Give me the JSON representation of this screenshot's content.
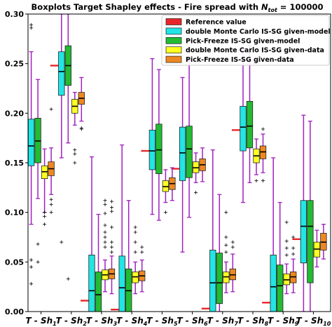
{
  "chart_data": {
    "type": "boxplot",
    "title": "Boxplots Target Shapley effects - Fire spread with ",
    "title_math": {
      "base": "N",
      "sub": "tot",
      "rest": " = 100000"
    },
    "categories": [
      {
        "base": "T - Sh",
        "sub": "1"
      },
      {
        "base": "T - Sh",
        "sub": "2"
      },
      {
        "base": "T - Sh",
        "sub": "3"
      },
      {
        "base": "T - Sh",
        "sub": "4"
      },
      {
        "base": "T - Sh",
        "sub": "5"
      },
      {
        "base": "T - Sh",
        "sub": "6"
      },
      {
        "base": "T - Sh",
        "sub": "7"
      },
      {
        "base": "T - Sh",
        "sub": "8"
      },
      {
        "base": "T - Sh",
        "sub": "9"
      },
      {
        "base": "T - Sh",
        "sub": "10"
      }
    ],
    "ylim": [
      0.0,
      0.3
    ],
    "yticks": [
      "0.00",
      "0.05",
      "0.10",
      "0.15",
      "0.20",
      "0.25",
      "0.30"
    ],
    "ytick_values": [
      0.0,
      0.05,
      0.1,
      0.15,
      0.2,
      0.25,
      0.3
    ],
    "legend_position": "top-right",
    "reference": {
      "name": "Reference value",
      "color": "#e8262a",
      "values": [
        0.152,
        0.248,
        0.011,
        0.002,
        0.162,
        0.144,
        0.003,
        0.183,
        0.009,
        0.073
      ]
    },
    "series": [
      {
        "name": "double Monte Carlo IS-SG given-model",
        "color": "#22e5e5",
        "whisker_color": "#a020c0",
        "boxes": [
          {
            "whislo": 0.088,
            "q1": 0.147,
            "med": 0.167,
            "q3": 0.194,
            "whishi": 0.262,
            "fliers": [
              0.286,
              0.289,
              0.045,
              0.052,
              0.028
            ]
          },
          {
            "whislo": 0.155,
            "q1": 0.218,
            "med": 0.242,
            "q3": 0.262,
            "whishi": 0.3,
            "fliers": [
              0.07
            ]
          },
          {
            "whislo": 0.0,
            "q1": 0.0,
            "med": 0.021,
            "q3": 0.057,
            "whishi": 0.156,
            "fliers": []
          },
          {
            "whislo": 0.0,
            "q1": 0.0,
            "med": 0.024,
            "q3": 0.056,
            "whishi": 0.168,
            "fliers": []
          },
          {
            "whislo": 0.098,
            "q1": 0.143,
            "med": 0.162,
            "q3": 0.183,
            "whishi": 0.255,
            "fliers": []
          },
          {
            "whislo": 0.06,
            "q1": 0.132,
            "med": 0.16,
            "q3": 0.186,
            "whishi": 0.236,
            "fliers": []
          },
          {
            "whislo": 0.0,
            "q1": 0.0,
            "med": 0.029,
            "q3": 0.062,
            "whishi": 0.163,
            "fliers": []
          },
          {
            "whislo": 0.11,
            "q1": 0.162,
            "med": 0.186,
            "q3": 0.207,
            "whishi": 0.265,
            "fliers": []
          },
          {
            "whislo": 0.0,
            "q1": 0.0,
            "med": 0.025,
            "q3": 0.057,
            "whishi": 0.155,
            "fliers": []
          },
          {
            "whislo": 0.0,
            "q1": 0.049,
            "med": 0.086,
            "q3": 0.112,
            "whishi": 0.198,
            "fliers": []
          }
        ]
      },
      {
        "name": "Pick-Freeze IS-SG given-model",
        "color": "#22bb33",
        "whisker_color": "#a020c0",
        "boxes": [
          {
            "whislo": 0.114,
            "q1": 0.15,
            "med": 0.172,
            "q3": 0.195,
            "whishi": 0.234,
            "fliers": [
              0.05,
              0.068
            ]
          },
          {
            "whislo": 0.17,
            "q1": 0.228,
            "med": 0.248,
            "q3": 0.268,
            "whishi": 0.3,
            "fliers": [
              0.033
            ]
          },
          {
            "whislo": 0.0,
            "q1": 0.0,
            "med": 0.017,
            "q3": 0.04,
            "whishi": 0.098,
            "fliers": []
          },
          {
            "whislo": 0.0,
            "q1": 0.0,
            "med": 0.021,
            "q3": 0.043,
            "whishi": 0.112,
            "fliers": []
          },
          {
            "whislo": 0.092,
            "q1": 0.139,
            "med": 0.163,
            "q3": 0.189,
            "whishi": 0.244,
            "fliers": []
          },
          {
            "whislo": 0.095,
            "q1": 0.135,
            "med": 0.164,
            "q3": 0.187,
            "whishi": 0.253,
            "fliers": []
          },
          {
            "whislo": 0.0,
            "q1": 0.008,
            "med": 0.029,
            "q3": 0.059,
            "whishi": 0.118,
            "fliers": []
          },
          {
            "whislo": 0.13,
            "q1": 0.165,
            "med": 0.187,
            "q3": 0.212,
            "whishi": 0.268,
            "fliers": []
          },
          {
            "whislo": 0.0,
            "q1": 0.0,
            "med": 0.026,
            "q3": 0.047,
            "whishi": 0.11,
            "fliers": []
          },
          {
            "whislo": 0.0,
            "q1": 0.029,
            "med": 0.086,
            "q3": 0.112,
            "whishi": 0.192,
            "fliers": []
          }
        ]
      },
      {
        "name": "double Monte Carlo IS-SG given-data",
        "color": "#ffff22",
        "whisker_color": "#a020c0",
        "boxes": [
          {
            "whislo": 0.1,
            "q1": 0.134,
            "med": 0.141,
            "q3": 0.147,
            "whishi": 0.164,
            "fliers": [
              0.1,
              0.096,
              0.088
            ]
          },
          {
            "whislo": 0.188,
            "q1": 0.2,
            "med": 0.207,
            "q3": 0.214,
            "whishi": 0.221,
            "fliers": [
              0.159,
              0.163,
              0.15
            ]
          },
          {
            "whislo": 0.02,
            "q1": 0.032,
            "med": 0.037,
            "q3": 0.042,
            "whishi": 0.052,
            "fliers": [
              0.065,
              0.07,
              0.075,
              0.08,
              0.087,
              0.099,
              0.108,
              0.112
            ]
          },
          {
            "whislo": 0.018,
            "q1": 0.029,
            "med": 0.035,
            "q3": 0.04,
            "whishi": 0.05,
            "fliers": [
              0.06,
              0.07,
              0.08,
              0.085
            ]
          },
          {
            "whislo": 0.11,
            "q1": 0.121,
            "med": 0.126,
            "q3": 0.132,
            "whishi": 0.143,
            "fliers": [
              0.1
            ]
          },
          {
            "whislo": 0.13,
            "q1": 0.14,
            "med": 0.145,
            "q3": 0.151,
            "whishi": 0.16,
            "fliers": [
              0.12
            ]
          },
          {
            "whislo": 0.019,
            "q1": 0.029,
            "med": 0.035,
            "q3": 0.04,
            "whishi": 0.05,
            "fliers": [
              0.06,
              0.067,
              0.075,
              0.1
            ]
          },
          {
            "whislo": 0.138,
            "q1": 0.15,
            "med": 0.157,
            "q3": 0.164,
            "whishi": 0.174,
            "fliers": [
              0.132
            ]
          },
          {
            "whislo": 0.018,
            "q1": 0.027,
            "med": 0.032,
            "q3": 0.038,
            "whishi": 0.048,
            "fliers": [
              0.057,
              0.064,
              0.071,
              0.09
            ]
          },
          {
            "whislo": 0.045,
            "q1": 0.055,
            "med": 0.063,
            "q3": 0.07,
            "whishi": 0.082,
            "fliers": []
          }
        ]
      },
      {
        "name": "Pick-Freeze IS-SG given-data",
        "color": "#ee8822",
        "whisker_color": "#a020c0",
        "boxes": [
          {
            "whislo": 0.118,
            "q1": 0.137,
            "med": 0.144,
            "q3": 0.151,
            "whishi": 0.165,
            "fliers": [
              0.204,
              0.108,
              0.1,
              0.113
            ]
          },
          {
            "whislo": 0.192,
            "q1": 0.209,
            "med": 0.215,
            "q3": 0.221,
            "whishi": 0.236,
            "fliers": [
              0.184,
              0.185
            ]
          },
          {
            "whislo": 0.018,
            "q1": 0.033,
            "med": 0.038,
            "q3": 0.043,
            "whishi": 0.056,
            "fliers": [
              0.06,
              0.065,
              0.07,
              0.085,
              0.101,
              0.105,
              0.111
            ]
          },
          {
            "whislo": 0.02,
            "q1": 0.031,
            "med": 0.036,
            "q3": 0.041,
            "whishi": 0.052,
            "fliers": [
              0.06,
              0.065
            ]
          },
          {
            "whislo": 0.112,
            "q1": 0.123,
            "med": 0.129,
            "q3": 0.135,
            "whishi": 0.145,
            "fliers": []
          },
          {
            "whislo": 0.131,
            "q1": 0.142,
            "med": 0.148,
            "q3": 0.154,
            "whishi": 0.165,
            "fliers": []
          },
          {
            "whislo": 0.02,
            "q1": 0.032,
            "med": 0.037,
            "q3": 0.043,
            "whishi": 0.058,
            "fliers": [
              0.065,
              0.07
            ]
          },
          {
            "whislo": 0.14,
            "q1": 0.154,
            "med": 0.161,
            "q3": 0.167,
            "whishi": 0.179,
            "fliers": [
              0.184,
              0.132
            ]
          },
          {
            "whislo": 0.019,
            "q1": 0.029,
            "med": 0.035,
            "q3": 0.04,
            "whishi": 0.053,
            "fliers": [
              0.058,
              0.064,
              0.075
            ]
          },
          {
            "whislo": 0.053,
            "q1": 0.062,
            "med": 0.07,
            "q3": 0.079,
            "whishi": 0.088,
            "fliers": []
          }
        ]
      }
    ]
  }
}
